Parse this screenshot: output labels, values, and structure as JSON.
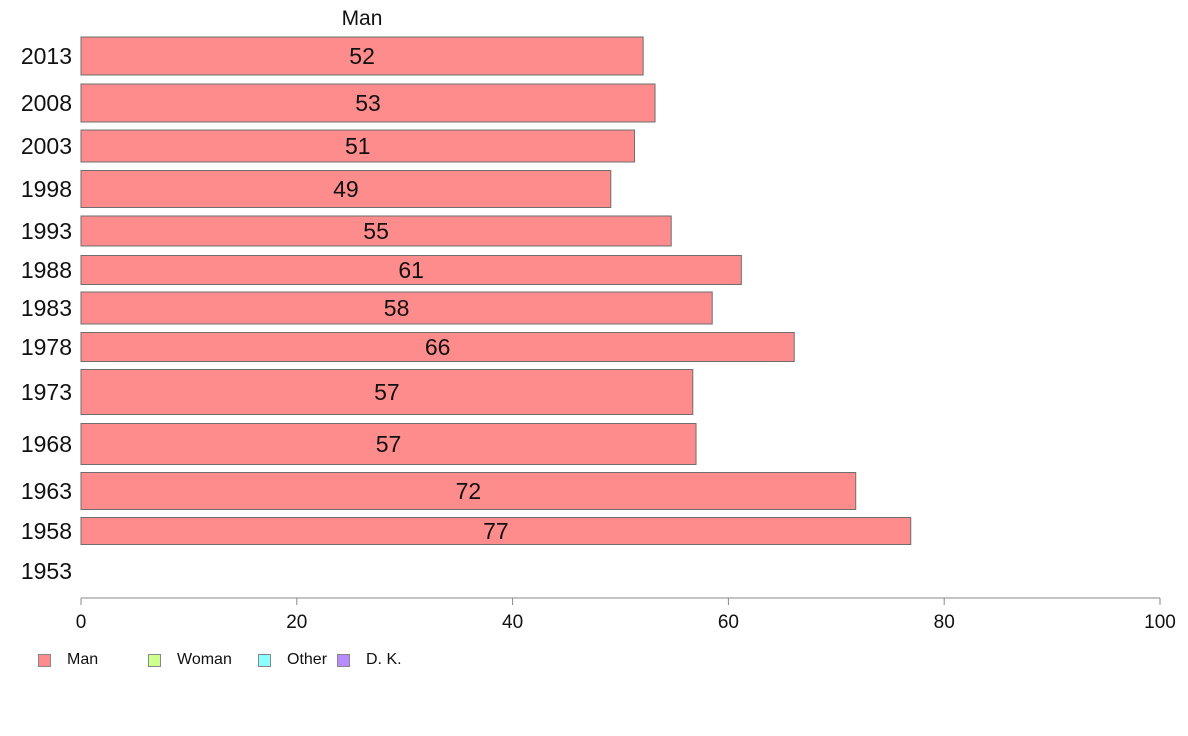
{
  "chart_data": {
    "type": "bar",
    "orientation": "horizontal",
    "title": "Man",
    "categories": [
      "2013",
      "2008",
      "2003",
      "1998",
      "1993",
      "1988",
      "1983",
      "1978",
      "1973",
      "1968",
      "1963",
      "1958",
      "1953"
    ],
    "series": [
      {
        "name": "Man",
        "color": "#ff8c8c",
        "values": [
          52.1,
          53.2,
          51.3,
          49.1,
          54.7,
          61.2,
          58.5,
          66.1,
          56.7,
          57.0,
          71.8,
          76.9,
          null
        ],
        "labels": [
          "52",
          "53",
          "51",
          "49",
          "55",
          "61",
          "58",
          "66",
          "57",
          "57",
          "72",
          "77",
          ""
        ]
      }
    ],
    "xlim": [
      0,
      100
    ],
    "xticks": [
      "0",
      "20",
      "40",
      "60",
      "80",
      "100"
    ],
    "xlabel": "",
    "ylabel": "",
    "grid": false,
    "legend_position": "bottom-left",
    "legend": [
      {
        "label": "Man",
        "color": "#ff8c8c"
      },
      {
        "label": "Woman",
        "color": "#ccff8c"
      },
      {
        "label": "Other",
        "color": "#8cffff"
      },
      {
        "label": "D. K.",
        "color": "#b88cff"
      }
    ]
  }
}
